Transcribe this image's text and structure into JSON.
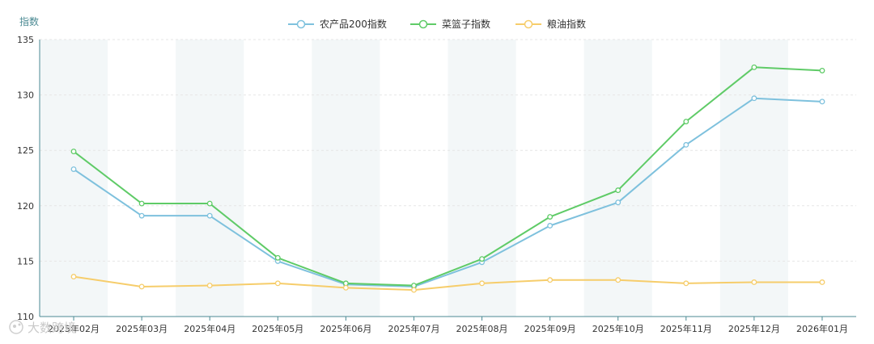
{
  "chart_data": {
    "type": "line",
    "ylabel": "指数",
    "ylim": [
      110,
      135
    ],
    "yticks": [
      110,
      115,
      120,
      125,
      130,
      135
    ],
    "categories": [
      "2025年02月",
      "2025年03月",
      "2025年04月",
      "2025年05月",
      "2025年06月",
      "2025年07月",
      "2025年08月",
      "2025年09月",
      "2025年10月",
      "2025年11月",
      "2025年12月",
      "2026年01月"
    ],
    "series": [
      {
        "name": "农产品200指数",
        "color": "#7ec1dd",
        "values": [
          123.3,
          119.1,
          119.1,
          115.0,
          112.9,
          112.7,
          114.9,
          118.2,
          120.3,
          125.5,
          129.7,
          129.4
        ]
      },
      {
        "name": "菜篮子指数",
        "color": "#5fcb67",
        "values": [
          124.9,
          120.2,
          120.2,
          115.3,
          113.0,
          112.8,
          115.2,
          119.0,
          121.4,
          127.6,
          132.5,
          132.2
        ]
      },
      {
        "name": "粮油指数",
        "color": "#f6cd6b",
        "values": [
          113.6,
          112.7,
          112.8,
          113.0,
          112.6,
          112.4,
          113.0,
          113.3,
          113.3,
          113.0,
          113.1,
          113.1
        ]
      }
    ],
    "grid": true,
    "legend_position": "top-center"
  },
  "watermark": {
    "text": "大数跨境"
  }
}
